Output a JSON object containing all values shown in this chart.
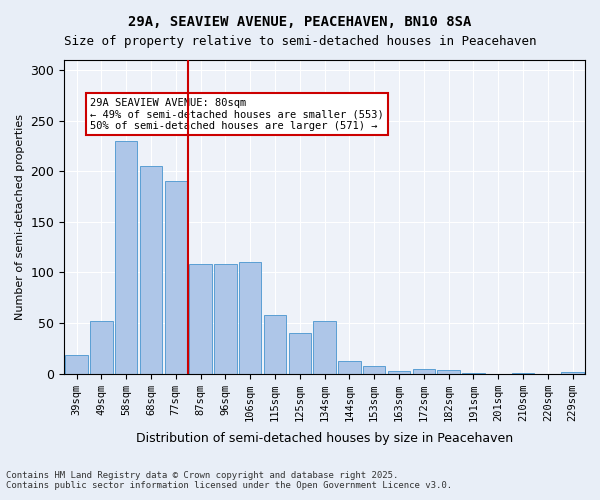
{
  "title1": "29A, SEAVIEW AVENUE, PEACEHAVEN, BN10 8SA",
  "title2": "Size of property relative to semi-detached houses in Peacehaven",
  "xlabel": "Distribution of semi-detached houses by size in Peacehaven",
  "ylabel": "Number of semi-detached properties",
  "categories": [
    "39sqm",
    "49sqm",
    "58sqm",
    "68sqm",
    "77sqm",
    "87sqm",
    "96sqm",
    "106sqm",
    "115sqm",
    "125sqm",
    "134sqm",
    "144sqm",
    "153sqm",
    "163sqm",
    "172sqm",
    "182sqm",
    "191sqm",
    "201sqm",
    "210sqm",
    "220sqm",
    "229sqm"
  ],
  "values": [
    18,
    52,
    230,
    205,
    190,
    108,
    108,
    110,
    58,
    40,
    52,
    13,
    8,
    3,
    5,
    4,
    1,
    0,
    1,
    0,
    2
  ],
  "bar_color": "#aec6e8",
  "bar_edge_color": "#5a9fd4",
  "vline_x": 4.5,
  "vline_color": "#cc0000",
  "annotation_title": "29A SEAVIEW AVENUE: 80sqm",
  "annotation_line1": "← 49% of semi-detached houses are smaller (553)",
  "annotation_line2": "50% of semi-detached houses are larger (571) →",
  "annotation_box_color": "#ffffff",
  "annotation_box_edge": "#cc0000",
  "ylim": [
    0,
    310
  ],
  "yticks": [
    0,
    50,
    100,
    150,
    200,
    250,
    300
  ],
  "footer1": "Contains HM Land Registry data © Crown copyright and database right 2025.",
  "footer2": "Contains public sector information licensed under the Open Government Licence v3.0.",
  "bg_color": "#e8eef7",
  "plot_bg_color": "#eef2f9"
}
